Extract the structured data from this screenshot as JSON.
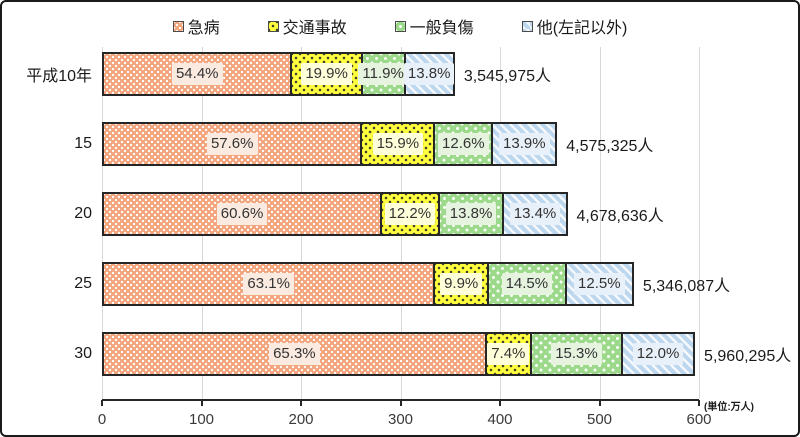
{
  "chart_data": {
    "type": "bar",
    "orientation": "horizontal",
    "stacked": true,
    "title": "",
    "unit_note": "(単位:万人)",
    "legend_position": "top",
    "grid": true,
    "categories": [
      "平成10年",
      "15",
      "20",
      "25",
      "30"
    ],
    "series": [
      {
        "name": "急病",
        "values": [
          54.4,
          57.6,
          60.6,
          63.1,
          65.3
        ],
        "fill": "#F2A47C",
        "label_bg": "#FBEADF",
        "pattern": "dots-white"
      },
      {
        "name": "交通事故",
        "values": [
          19.9,
          15.9,
          12.2,
          9.9,
          7.4
        ],
        "fill": "#FFFF3D",
        "label_bg": "#FFFFD9",
        "pattern": "dots-black"
      },
      {
        "name": "一般負傷",
        "values": [
          11.9,
          12.6,
          13.8,
          14.5,
          15.3
        ],
        "fill": "#9CD98B",
        "label_bg": "#E5F3DF",
        "pattern": "dots-white-lg"
      },
      {
        "name": "他(左記以外)",
        "values": [
          13.8,
          13.9,
          13.4,
          12.5,
          12.0
        ],
        "fill": "#BDD7EE",
        "label_bg": "#E8F0F9",
        "pattern": "stripes"
      }
    ],
    "totals": [
      {
        "label": "3,545,975人",
        "value_man": 354.5975
      },
      {
        "label": "4,575,325人",
        "value_man": 457.5325
      },
      {
        "label": "4,678,636人",
        "value_man": 467.8636
      },
      {
        "label": "5,346,087人",
        "value_man": 534.6087
      },
      {
        "label": "5,960,295人",
        "value_man": 596.0295
      }
    ],
    "x_ticks": [
      0,
      100,
      200,
      300,
      400,
      500,
      600
    ],
    "xlim": [
      0,
      600
    ],
    "colors": {
      "gridline": "#d9d9d9",
      "axis": "#262626",
      "segment_border": "#262626",
      "text": "#1a1a1a"
    }
  }
}
